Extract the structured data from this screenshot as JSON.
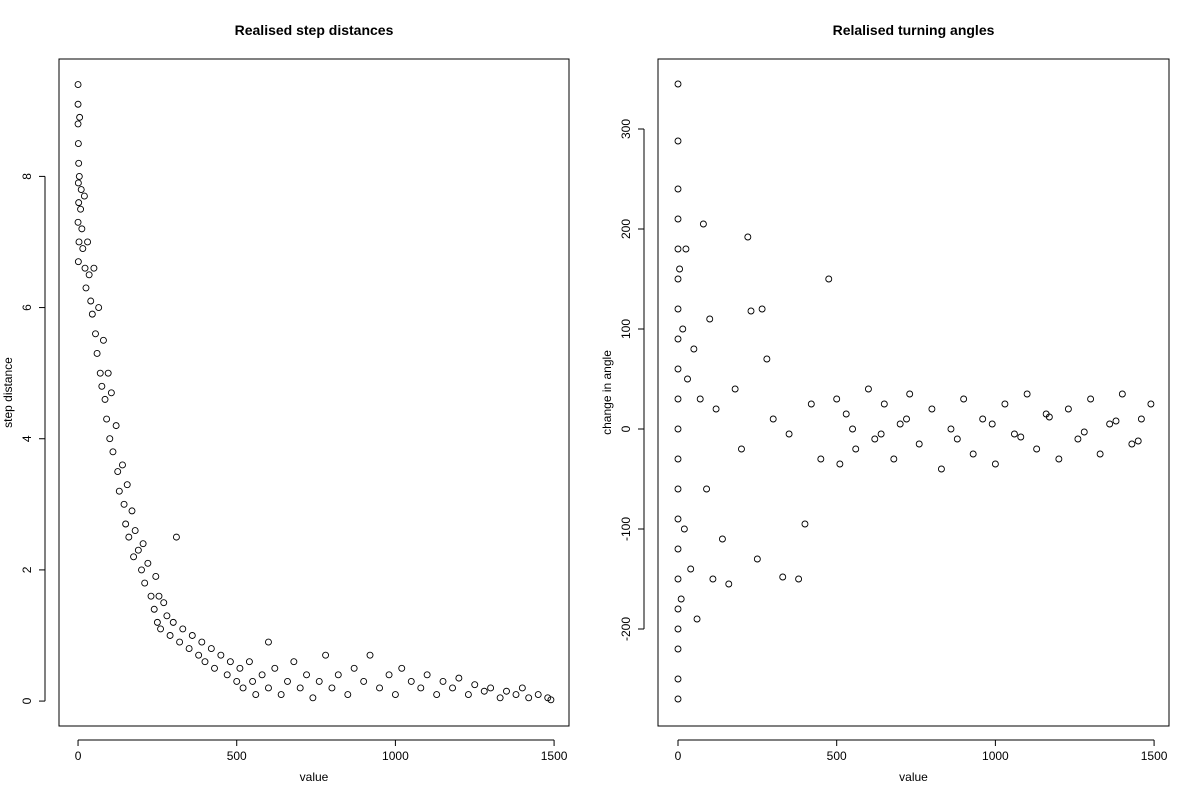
{
  "chart_data": [
    {
      "type": "scatter",
      "title": "Realised step distances",
      "x_label": "value",
      "y_label": "step distance",
      "color": "#000000",
      "xlim": [
        -60,
        1547
      ],
      "ylim": [
        -0.38,
        9.79
      ],
      "xticks": [
        0,
        500,
        1000,
        1500
      ],
      "yticks": [
        0,
        2,
        4,
        6,
        8
      ],
      "x": [
        0,
        0,
        0,
        1,
        2,
        1,
        2,
        0,
        3,
        1,
        5,
        4,
        8,
        10,
        12,
        15,
        20,
        22,
        25,
        30,
        35,
        40,
        45,
        50,
        55,
        60,
        65,
        70,
        75,
        80,
        85,
        90,
        95,
        100,
        105,
        110,
        120,
        125,
        130,
        140,
        145,
        150,
        155,
        160,
        170,
        175,
        180,
        190,
        200,
        205,
        210,
        220,
        230,
        240,
        245,
        250,
        255,
        260,
        270,
        280,
        290,
        300,
        310,
        320,
        330,
        350,
        360,
        380,
        390,
        400,
        420,
        430,
        450,
        470,
        480,
        500,
        510,
        520,
        540,
        550,
        560,
        580,
        600,
        600,
        620,
        640,
        660,
        680,
        700,
        720,
        740,
        760,
        780,
        800,
        820,
        850,
        870,
        900,
        920,
        950,
        980,
        1000,
        1020,
        1050,
        1080,
        1100,
        1130,
        1150,
        1180,
        1200,
        1230,
        1250,
        1280,
        1300,
        1330,
        1350,
        1380,
        1400,
        1420,
        1450,
        1480,
        1490
      ],
      "values": [
        9.4,
        9.1,
        8.8,
        8.5,
        8.2,
        7.9,
        7.6,
        7.3,
        7.0,
        6.7,
        8.9,
        8.0,
        7.5,
        7.8,
        7.2,
        6.9,
        7.7,
        6.6,
        6.3,
        7.0,
        6.5,
        6.1,
        5.9,
        6.6,
        5.6,
        5.3,
        6.0,
        5.0,
        4.8,
        5.5,
        4.6,
        4.3,
        5.0,
        4.0,
        4.7,
        3.8,
        4.2,
        3.5,
        3.2,
        3.6,
        3.0,
        2.7,
        3.3,
        2.5,
        2.9,
        2.2,
        2.6,
        2.3,
        2.0,
        2.4,
        1.8,
        2.1,
        1.6,
        1.4,
        1.9,
        1.2,
        1.6,
        1.1,
        1.5,
        1.3,
        1.0,
        1.2,
        2.5,
        0.9,
        1.1,
        0.8,
        1.0,
        0.7,
        0.9,
        0.6,
        0.8,
        0.5,
        0.7,
        0.4,
        0.6,
        0.3,
        0.5,
        0.2,
        0.6,
        0.3,
        0.1,
        0.4,
        0.9,
        0.2,
        0.5,
        0.1,
        0.3,
        0.6,
        0.2,
        0.4,
        0.05,
        0.3,
        0.7,
        0.2,
        0.4,
        0.1,
        0.5,
        0.3,
        0.7,
        0.2,
        0.4,
        0.1,
        0.5,
        0.3,
        0.2,
        0.4,
        0.1,
        0.3,
        0.2,
        0.35,
        0.1,
        0.25,
        0.15,
        0.2,
        0.05,
        0.15,
        0.1,
        0.2,
        0.05,
        0.1,
        0.05,
        0.02
      ]
    },
    {
      "type": "scatter",
      "title": "Relalised turning angles",
      "x_label": "value",
      "y_label": "change in angle",
      "color": "#000000",
      "xlim": [
        -63,
        1547
      ],
      "ylim": [
        -297,
        370
      ],
      "xticks": [
        0,
        500,
        1000,
        1500
      ],
      "yticks": [
        -200,
        -100,
        0,
        100,
        200,
        300
      ],
      "x": [
        0,
        0,
        0,
        0,
        0,
        0,
        0,
        0,
        0,
        0,
        0,
        0,
        0,
        0,
        0,
        0,
        0,
        0,
        0,
        0,
        0,
        5,
        10,
        15,
        20,
        25,
        30,
        40,
        50,
        60,
        70,
        80,
        90,
        100,
        110,
        120,
        140,
        160,
        180,
        200,
        220,
        230,
        250,
        265,
        280,
        300,
        330,
        350,
        380,
        400,
        420,
        450,
        475,
        500,
        510,
        530,
        560,
        600,
        620,
        650,
        680,
        700,
        730,
        760,
        800,
        830,
        860,
        900,
        930,
        960,
        1000,
        1030,
        1060,
        1100,
        1130,
        1160,
        1200,
        1230,
        1260,
        1300,
        1330,
        1360,
        1400,
        1430,
        1460,
        1490,
        550,
        640,
        720,
        880,
        990,
        1080,
        1170,
        1280,
        1380,
        1450
      ],
      "values": [
        345,
        288,
        240,
        210,
        180,
        150,
        120,
        90,
        60,
        30,
        0,
        -30,
        -60,
        -90,
        -120,
        -150,
        -180,
        -200,
        -220,
        -250,
        -270,
        160,
        -170,
        100,
        -100,
        180,
        50,
        -140,
        80,
        -190,
        30,
        205,
        -60,
        110,
        -150,
        20,
        -110,
        -155,
        40,
        -20,
        192,
        118,
        -130,
        120,
        70,
        10,
        -148,
        -5,
        -150,
        -95,
        25,
        -30,
        150,
        30,
        -35,
        15,
        -20,
        40,
        -10,
        25,
        -30,
        5,
        35,
        -15,
        20,
        -40,
        0,
        30,
        -25,
        10,
        -35,
        25,
        -5,
        35,
        -20,
        15,
        -30,
        20,
        -10,
        30,
        -25,
        5,
        35,
        -15,
        10,
        25,
        0,
        -5,
        10,
        -10,
        5,
        -8,
        12,
        -3,
        8,
        -12
      ]
    }
  ]
}
